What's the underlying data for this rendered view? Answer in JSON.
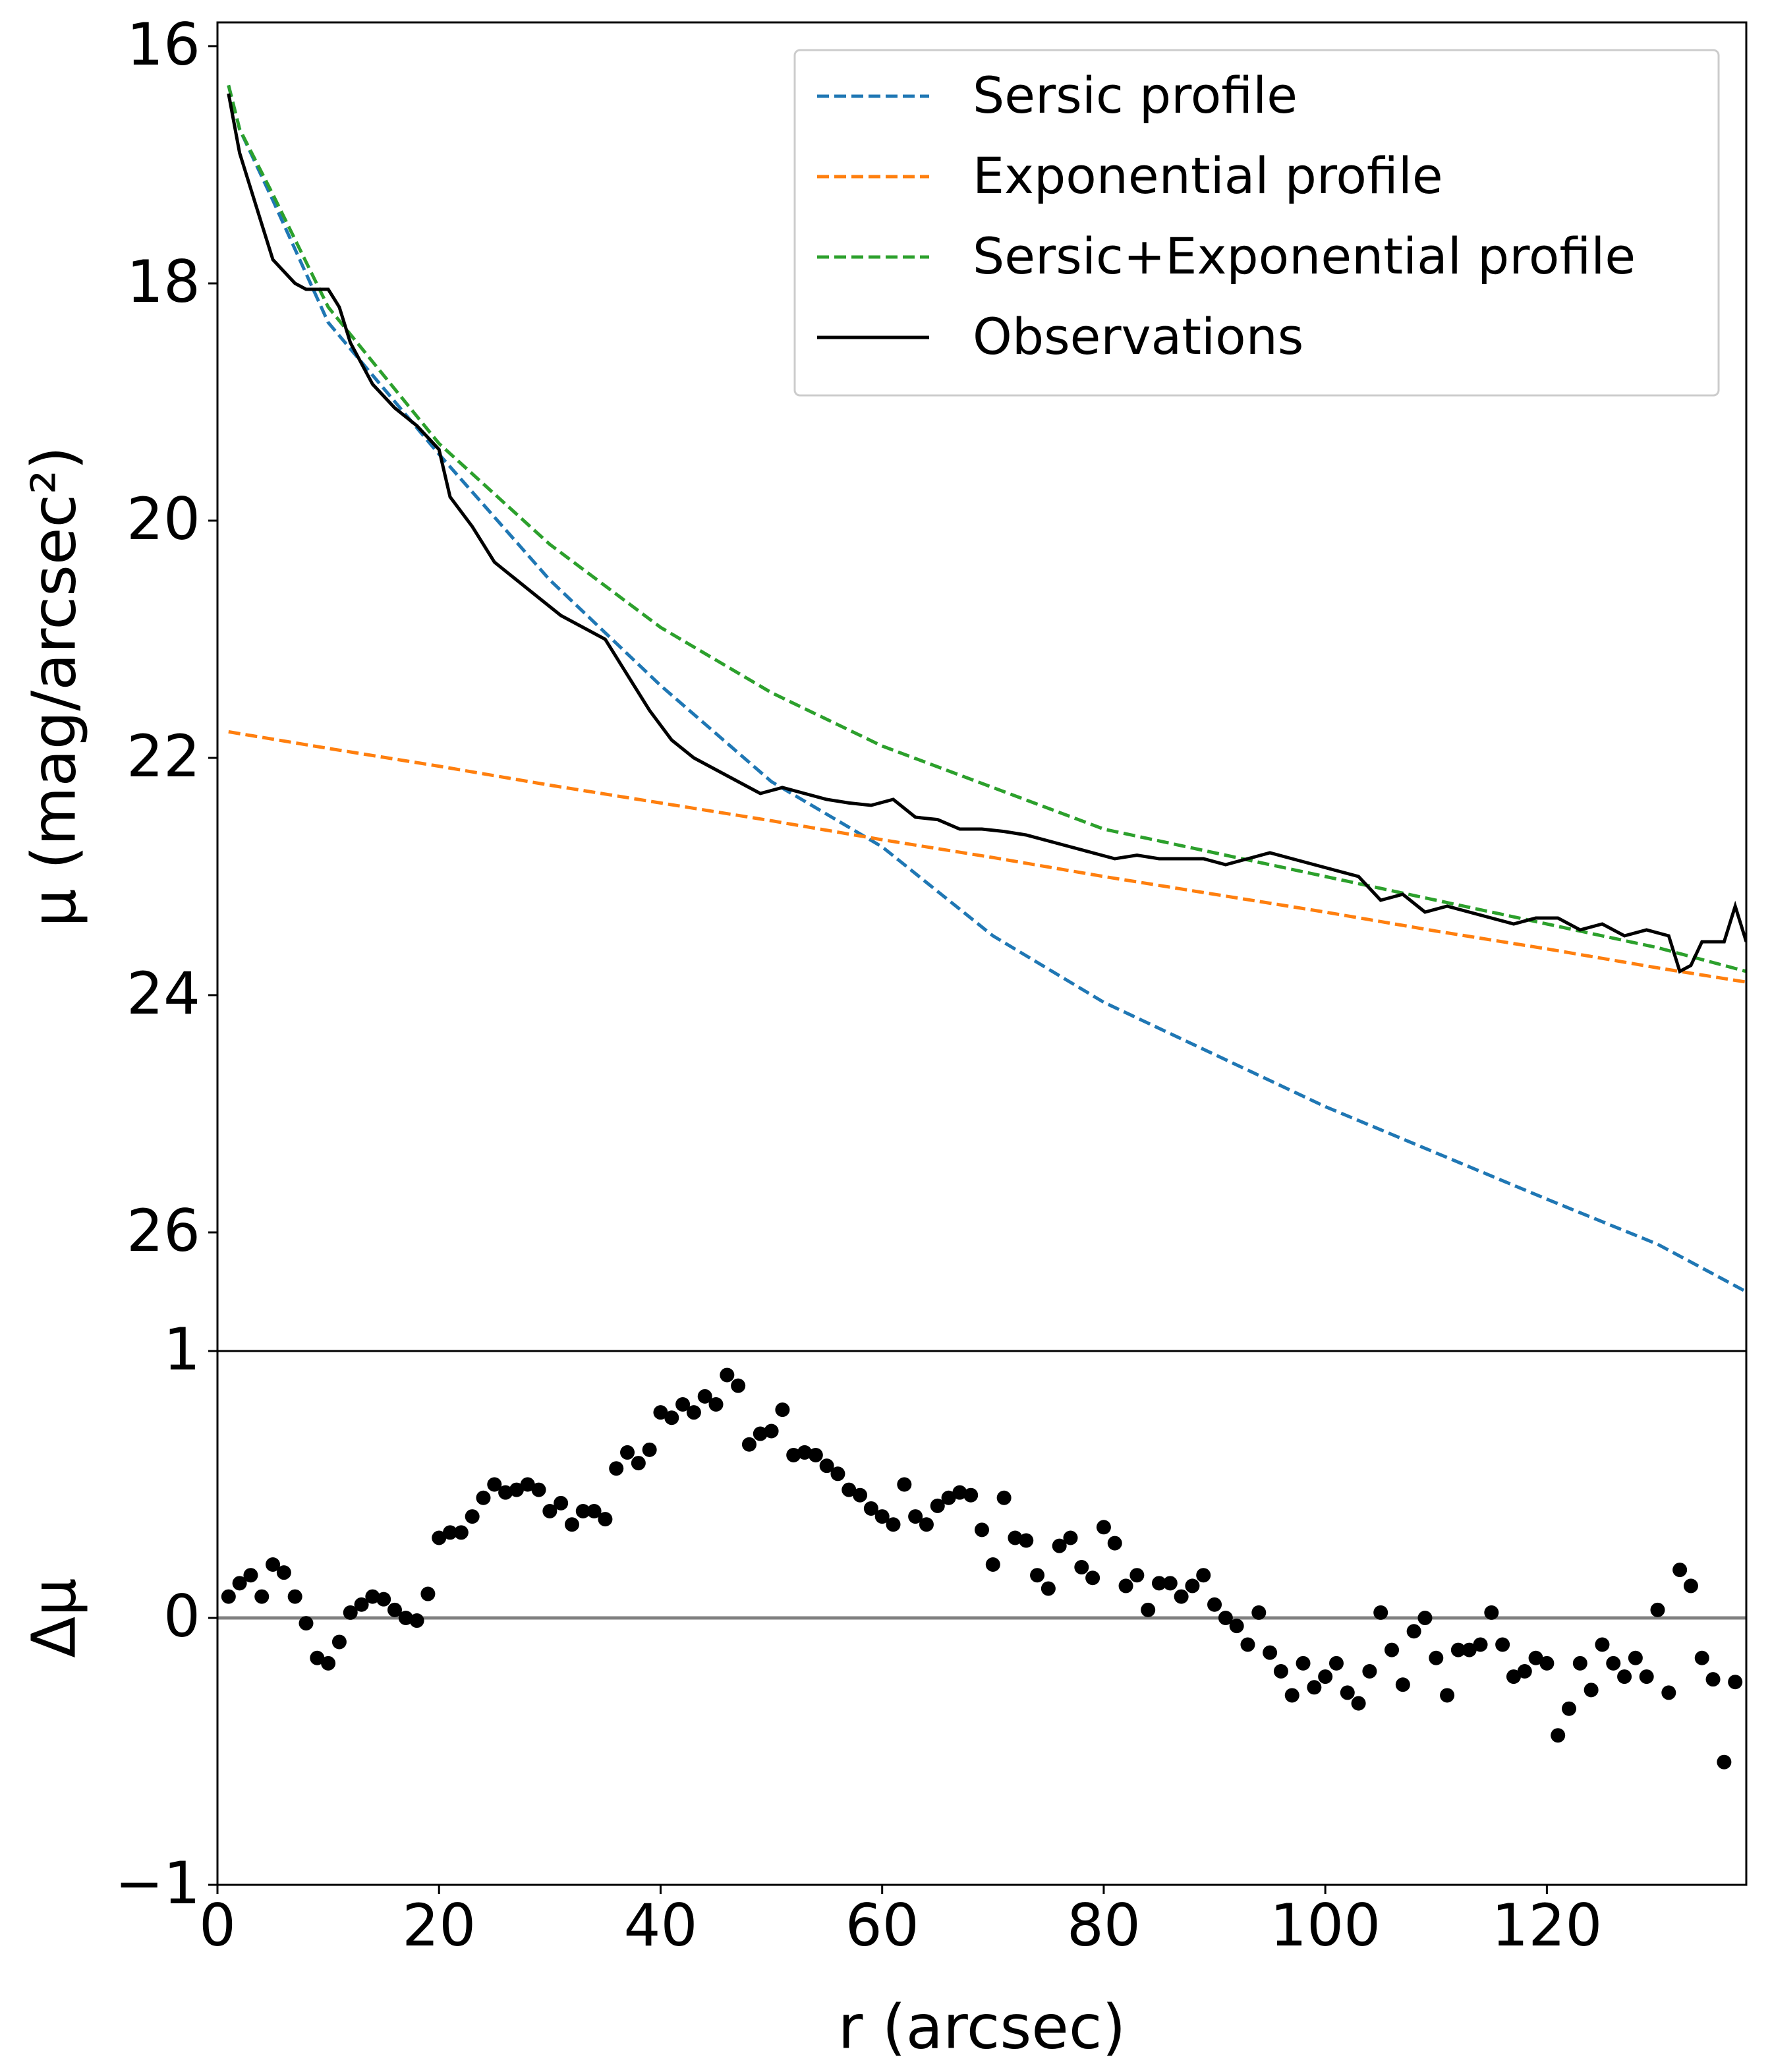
{
  "chart_data": [
    {
      "type": "line",
      "ylabel": "μ (mag/arcsec²)",
      "xlim": [
        0,
        138
      ],
      "ylim": [
        15.8,
        27
      ],
      "y_inverted": true,
      "yticks": [
        16,
        18,
        20,
        22,
        24,
        26
      ],
      "legend": "upper right",
      "series": [
        {
          "name": "Sersic profile",
          "color": "#1f77b4",
          "linestyle": "dashed",
          "x": [
            1,
            2,
            5,
            10,
            20,
            30,
            40,
            50,
            60,
            70,
            80,
            90,
            100,
            110,
            120,
            130,
            138
          ],
          "values": [
            16.33,
            16.7,
            17.3,
            18.33,
            19.44,
            20.5,
            21.39,
            22.2,
            22.75,
            23.5,
            24.06,
            24.5,
            24.94,
            25.33,
            25.72,
            26.1,
            26.5
          ]
        },
        {
          "name": "Exponential profile",
          "color": "#ff7f0e",
          "linestyle": "dashed",
          "x": [
            1,
            10,
            20,
            30,
            40,
            50,
            60,
            70,
            80,
            90,
            100,
            110,
            120,
            130,
            138
          ],
          "values": [
            21.78,
            21.92,
            22.07,
            22.23,
            22.38,
            22.53,
            22.69,
            22.84,
            23.0,
            23.15,
            23.3,
            23.46,
            23.61,
            23.77,
            23.89
          ]
        },
        {
          "name": "Sersic+Exponential profile",
          "color": "#2ca02c",
          "linestyle": "dashed",
          "x": [
            1,
            2,
            5,
            10,
            20,
            30,
            40,
            50,
            60,
            70,
            80,
            90,
            100,
            110,
            120,
            130,
            138
          ],
          "values": [
            16.33,
            16.7,
            17.25,
            18.2,
            19.35,
            20.2,
            20.9,
            21.45,
            21.9,
            22.25,
            22.6,
            22.8,
            23.0,
            23.2,
            23.4,
            23.6,
            23.8
          ]
        },
        {
          "name": "Observations",
          "color": "#000000",
          "linestyle": "solid",
          "x": [
            1,
            2,
            3,
            4,
            5,
            6,
            7,
            8,
            9,
            10,
            11,
            12,
            14,
            16,
            18,
            20,
            21,
            23,
            25,
            27,
            29,
            31,
            33,
            35,
            37,
            39,
            41,
            43,
            45,
            47,
            49,
            51,
            53,
            55,
            57,
            59,
            61,
            63,
            65,
            67,
            69,
            71,
            73,
            75,
            77,
            79,
            81,
            83,
            85,
            87,
            89,
            91,
            93,
            95,
            97,
            99,
            101,
            103,
            105,
            107,
            109,
            111,
            113,
            115,
            117,
            119,
            121,
            123,
            125,
            127,
            129,
            131,
            132,
            133,
            134,
            136,
            137,
            138
          ],
          "values": [
            16.4,
            16.9,
            17.2,
            17.5,
            17.8,
            17.9,
            18.0,
            18.05,
            18.05,
            18.05,
            18.2,
            18.5,
            18.85,
            19.05,
            19.2,
            19.4,
            19.8,
            20.05,
            20.35,
            20.5,
            20.65,
            20.8,
            20.9,
            21.0,
            21.3,
            21.6,
            21.85,
            22.0,
            22.1,
            22.2,
            22.3,
            22.25,
            22.3,
            22.35,
            22.38,
            22.4,
            22.35,
            22.5,
            22.52,
            22.6,
            22.6,
            22.62,
            22.65,
            22.7,
            22.75,
            22.8,
            22.85,
            22.82,
            22.85,
            22.85,
            22.85,
            22.9,
            22.85,
            22.8,
            22.85,
            22.9,
            22.95,
            23.0,
            23.2,
            23.15,
            23.3,
            23.25,
            23.3,
            23.35,
            23.4,
            23.35,
            23.35,
            23.45,
            23.4,
            23.5,
            23.45,
            23.5,
            23.8,
            23.75,
            23.55,
            23.55,
            23.25,
            23.55
          ]
        }
      ]
    },
    {
      "type": "scatter",
      "xlabel": "r (arcsec)",
      "ylabel": "Δμ",
      "xlim": [
        0,
        138
      ],
      "ylim": [
        -1,
        1
      ],
      "xticks": [
        0,
        20,
        40,
        60,
        80,
        100,
        120
      ],
      "yticks": [
        {
          "value": -1,
          "label": "−1"
        },
        0,
        1
      ],
      "hline": 0,
      "hline_color": "#808080",
      "color": "#000000",
      "x": [
        1,
        2,
        3,
        4,
        5,
        6,
        7,
        8,
        9,
        10,
        11,
        12,
        13,
        14,
        15,
        16,
        17,
        18,
        19,
        20,
        21,
        22,
        23,
        24,
        25,
        26,
        27,
        28,
        29,
        30,
        31,
        32,
        33,
        34,
        35,
        36,
        37,
        38,
        39,
        40,
        41,
        42,
        43,
        44,
        45,
        46,
        47,
        48,
        49,
        50,
        51,
        52,
        53,
        54,
        55,
        56,
        57,
        58,
        59,
        60,
        61,
        62,
        63,
        64,
        65,
        66,
        67,
        68,
        69,
        70,
        71,
        72,
        73,
        74,
        75,
        76,
        77,
        78,
        79,
        80,
        81,
        82,
        83,
        84,
        85,
        86,
        87,
        88,
        89,
        90,
        91,
        92,
        93,
        94,
        95,
        96,
        97,
        98,
        99,
        100,
        101,
        102,
        103,
        104,
        105,
        106,
        107,
        108,
        109,
        110,
        111,
        112,
        113,
        114,
        115,
        116,
        117,
        118,
        119,
        120,
        121,
        122,
        123,
        124,
        125,
        126,
        127,
        128,
        129,
        130,
        131,
        132,
        133,
        134,
        135,
        136,
        137
      ],
      "values": [
        0.08,
        0.13,
        0.16,
        0.08,
        0.2,
        0.17,
        0.08,
        -0.02,
        -0.15,
        -0.17,
        -0.09,
        0.02,
        0.05,
        0.08,
        0.07,
        0.03,
        0.0,
        -0.01,
        0.09,
        0.3,
        0.32,
        0.32,
        0.38,
        0.45,
        0.5,
        0.47,
        0.48,
        0.5,
        0.48,
        0.4,
        0.43,
        0.35,
        0.4,
        0.4,
        0.37,
        0.56,
        0.62,
        0.58,
        0.63,
        0.77,
        0.75,
        0.8,
        0.77,
        0.83,
        0.8,
        0.91,
        0.87,
        0.65,
        0.69,
        0.7,
        0.78,
        0.61,
        0.62,
        0.61,
        0.57,
        0.54,
        0.48,
        0.46,
        0.41,
        0.38,
        0.35,
        0.5,
        0.38,
        0.35,
        0.42,
        0.45,
        0.47,
        0.46,
        0.33,
        0.2,
        0.45,
        0.3,
        0.29,
        0.16,
        0.11,
        0.27,
        0.3,
        0.19,
        0.15,
        0.34,
        0.28,
        0.12,
        0.16,
        0.03,
        0.13,
        0.13,
        0.08,
        0.12,
        0.16,
        0.05,
        0.0,
        -0.03,
        -0.1,
        0.02,
        -0.13,
        -0.2,
        -0.29,
        -0.17,
        -0.26,
        -0.22,
        -0.17,
        -0.28,
        -0.32,
        -0.2,
        0.02,
        -0.12,
        -0.25,
        -0.05,
        0.0,
        -0.15,
        -0.29,
        -0.12,
        -0.12,
        -0.1,
        0.02,
        -0.1,
        -0.22,
        -0.2,
        -0.15,
        -0.17,
        -0.44,
        -0.34,
        -0.17,
        -0.27,
        -0.1,
        -0.17,
        -0.22,
        -0.15,
        -0.22,
        0.03,
        -0.28,
        0.18,
        0.12,
        -0.15,
        -0.23,
        -0.54,
        -0.24
      ]
    }
  ]
}
